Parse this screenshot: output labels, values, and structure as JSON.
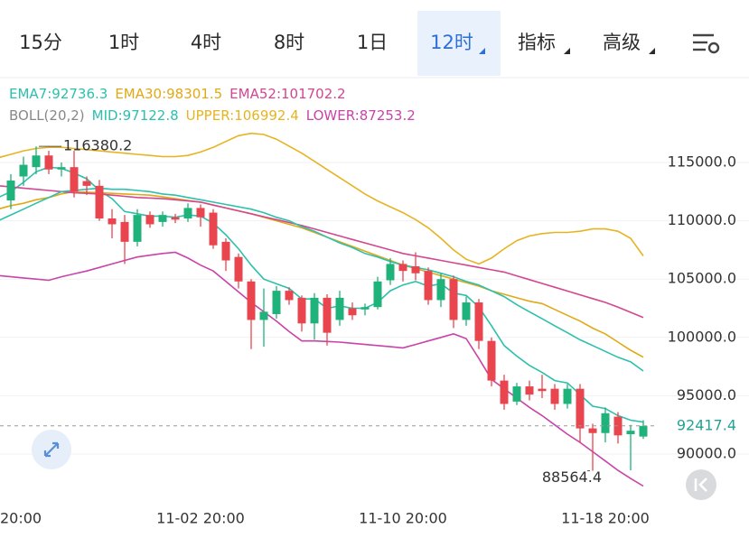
{
  "tabs": [
    {
      "label": "15分"
    },
    {
      "label": "1时"
    },
    {
      "label": "4时"
    },
    {
      "label": "8时"
    },
    {
      "label": "1日"
    },
    {
      "label": "12时",
      "selected": true,
      "dropdown": true
    },
    {
      "label": "指标",
      "dropdown": true
    },
    {
      "label": "高级",
      "dropdown": true
    }
  ],
  "chart_data": {
    "type": "candlestick",
    "group_label": "BOLL(20,2)",
    "categories": [
      "20:00",
      null,
      null,
      null,
      null,
      null,
      null,
      null,
      null,
      null,
      null,
      null,
      null,
      null,
      null,
      null,
      "11-02 20:00",
      null,
      null,
      null,
      null,
      null,
      null,
      null,
      null,
      null,
      null,
      null,
      null,
      null,
      null,
      null,
      "11-10 20:00",
      null,
      null,
      null,
      null,
      null,
      null,
      null,
      null,
      null,
      null,
      null,
      null,
      null,
      null,
      null,
      "11-18 20:00",
      null,
      null,
      null
    ],
    "open": [
      null,
      111750,
      113800,
      114600,
      115600,
      114400,
      114600,
      113400,
      113000,
      110200,
      109900,
      108200,
      110500,
      109900,
      110300,
      110200,
      111100,
      110700,
      108200,
      106900,
      104800,
      101500,
      102000,
      104000,
      103400,
      101200,
      103400,
      101500,
      102500,
      102400,
      102600,
      104900,
      106300,
      106100,
      105700,
      103200,
      105000,
      101500,
      103000,
      99700,
      96300,
      94500,
      95800,
      95600,
      95600,
      94300,
      95600,
      92200,
      91800,
      93200,
      91700,
      91500
    ],
    "high": [
      null,
      114000,
      115500,
      116380.2,
      116000,
      115000,
      116000,
      113800,
      113500,
      111000,
      110500,
      111000,
      110800,
      110800,
      110600,
      111500,
      111400,
      111000,
      108500,
      107200,
      105000,
      104200,
      104400,
      104300,
      103600,
      103800,
      103700,
      104000,
      103000,
      102900,
      105200,
      106800,
      106600,
      107300,
      106000,
      105500,
      105300,
      103500,
      103300,
      100000,
      96800,
      96100,
      96300,
      96800,
      96000,
      96000,
      96000,
      92600,
      94000,
      93600,
      92500,
      92900
    ],
    "low": [
      null,
      111000,
      113000,
      114000,
      114000,
      113800,
      112000,
      112200,
      110000,
      108500,
      106300,
      107800,
      109400,
      109500,
      109800,
      109900,
      109500,
      107600,
      105700,
      104200,
      99000,
      99200,
      101600,
      102800,
      100500,
      99800,
      99300,
      101000,
      101500,
      101900,
      102400,
      104500,
      104800,
      104900,
      102800,
      102600,
      100800,
      101000,
      99000,
      95800,
      93800,
      94200,
      94600,
      94800,
      93800,
      93900,
      91000,
      88564.4,
      91000,
      90900,
      88600,
      91300
    ],
    "close": [
      null,
      113450,
      114800,
      115600,
      114400,
      114600,
      112500,
      113000,
      110200,
      109700,
      108200,
      110500,
      109700,
      110500,
      110100,
      111100,
      110300,
      107900,
      106600,
      104800,
      101500,
      102200,
      104000,
      103200,
      101200,
      103400,
      100400,
      103400,
      101900,
      102600,
      104800,
      106300,
      105700,
      105500,
      103200,
      105000,
      101500,
      103000,
      99700,
      96300,
      94300,
      95800,
      95100,
      95400,
      94300,
      95600,
      92200,
      91800,
      93500,
      91600,
      92000,
      92417.4
    ],
    "up_color": "#1fb27a",
    "down_color": "#e9454f",
    "overlays": [
      {
        "label": "EMA7:92736.3",
        "color": "#2cc0ad",
        "row": 0,
        "values": [
          112000,
          112500,
          113300,
          114200,
          114600,
          114500,
          114100,
          113600,
          112600,
          111900,
          110800,
          110600,
          110400,
          110400,
          110300,
          110500,
          110400,
          109800,
          108800,
          107600,
          106200,
          105000,
          104600,
          104200,
          103300,
          103300,
          102500,
          102700,
          102500,
          102500,
          103000,
          104000,
          104500,
          104800,
          104400,
          104600,
          103800,
          103600,
          102600,
          101000,
          99300,
          98400,
          97600,
          97000,
          96300,
          96100,
          95100,
          94100,
          93900,
          93300,
          92900,
          92736.3
        ]
      },
      {
        "label": "EMA30:98301.5",
        "color": "#e0a915",
        "row": 0,
        "values": [
          111000,
          111300,
          111500,
          111800,
          112000,
          112300,
          112500,
          112450,
          112400,
          112350,
          112300,
          112250,
          112200,
          112050,
          111900,
          111750,
          111600,
          111350,
          111100,
          110850,
          110600,
          110300,
          110000,
          109700,
          109400,
          109000,
          108600,
          108200,
          107800,
          107400,
          107000,
          106600,
          106200,
          105900,
          105600,
          105300,
          105000,
          104700,
          104400,
          104000,
          103700,
          103400,
          103100,
          102900,
          102400,
          101900,
          101400,
          100800,
          100300,
          99600,
          98900,
          98301.5
        ]
      },
      {
        "label": "EMA52:101702.2",
        "color": "#d2478f",
        "row": 0,
        "values": [
          113000,
          112900,
          112800,
          112700,
          112600,
          112500,
          112400,
          112350,
          112300,
          112200,
          112100,
          112000,
          111950,
          111900,
          111800,
          111700,
          111600,
          111350,
          111100,
          110850,
          110600,
          110350,
          110100,
          109850,
          109600,
          109300,
          109000,
          108700,
          108400,
          108100,
          107800,
          107500,
          107200,
          107000,
          106800,
          106600,
          106400,
          106200,
          106000,
          105800,
          105600,
          105280,
          104950,
          104630,
          104300,
          103980,
          103650,
          103330,
          103000,
          102600,
          102150,
          101702.2
        ]
      },
      {
        "label": "MID:97122.8",
        "color": "#2cc0ad",
        "row": 1,
        "values": [
          110000,
          110500,
          111000,
          111500,
          112000,
          112500,
          112600,
          112700,
          112800,
          112700,
          112700,
          112600,
          112500,
          112300,
          112200,
          112000,
          111800,
          111600,
          111400,
          111200,
          111000,
          110700,
          110300,
          110000,
          109500,
          109100,
          108600,
          108100,
          107700,
          107200,
          106900,
          106500,
          106200,
          106000,
          105800,
          105500,
          105200,
          104800,
          104500,
          104000,
          103500,
          102800,
          102200,
          101600,
          101000,
          100400,
          99800,
          99300,
          98800,
          98300,
          97900,
          97122.8
        ]
      },
      {
        "label": "UPPER:106992.4",
        "color": "#e6b422",
        "row": 1,
        "values": [
          115400,
          115700,
          116000,
          116200,
          116300,
          116300,
          116200,
          116100,
          116000,
          115900,
          115800,
          115700,
          115600,
          115500,
          115500,
          115600,
          115900,
          116300,
          116800,
          117300,
          117500,
          117400,
          117000,
          116400,
          115800,
          115100,
          114400,
          113700,
          113000,
          112300,
          111700,
          111200,
          110700,
          110100,
          109400,
          108500,
          107500,
          106700,
          106300,
          106800,
          107600,
          108300,
          108700,
          108900,
          109000,
          109000,
          109100,
          109300,
          109300,
          109100,
          108500,
          106992.4
        ]
      },
      {
        "label": "LOWER:87253.2",
        "color": "#c844a8",
        "row": 1,
        "values": [
          105300,
          105200,
          105100,
          105000,
          104900,
          105200,
          105450,
          105700,
          106000,
          106300,
          106600,
          106900,
          107050,
          107200,
          107300,
          106800,
          106200,
          105700,
          104800,
          103900,
          103000,
          102200,
          101400,
          100500,
          99700,
          99700,
          99650,
          99600,
          99500,
          99400,
          99300,
          99200,
          99100,
          99400,
          99700,
          100000,
          100300,
          99900,
          98200,
          96400,
          95600,
          94800,
          94000,
          93300,
          92500,
          91700,
          91000,
          90200,
          89400,
          88600,
          87900,
          87253.2
        ]
      }
    ],
    "ylim": [
      85975,
      122353
    ],
    "yticks": [
      {
        "value": 90000,
        "label": "90000.0"
      },
      {
        "value": 95000,
        "label": "95000.0"
      },
      {
        "value": 100000,
        "label": "100000.0"
      },
      {
        "value": 105000,
        "label": "105000.0"
      },
      {
        "value": 110000,
        "label": "110000.0"
      },
      {
        "value": 115000,
        "label": "115000.0"
      }
    ],
    "grid": true
  }
}
